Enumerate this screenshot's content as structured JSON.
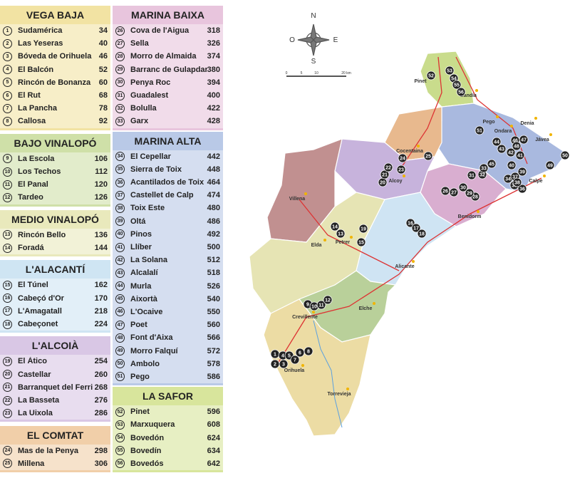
{
  "groups": [
    {
      "title": "VEGA BAJA",
      "color": "#f2e3a3",
      "items": [
        {
          "num": 1,
          "name": "Sudamérica",
          "value": 34
        },
        {
          "num": 2,
          "name": "Las Yeseras",
          "value": 40
        },
        {
          "num": 3,
          "name": "Bóveda de Orihuela",
          "value": 46
        },
        {
          "num": 4,
          "name": "El Balcón",
          "value": 52
        },
        {
          "num": 5,
          "name": "Rincón de Bonanza",
          "value": 60
        },
        {
          "num": 6,
          "name": "El Rut",
          "value": 68
        },
        {
          "num": 7,
          "name": "La Pancha",
          "value": 78
        },
        {
          "num": 8,
          "name": "Callosa",
          "value": 92
        }
      ]
    },
    {
      "title": "BAJO VINALOPÓ",
      "color": "#cfe0a8",
      "items": [
        {
          "num": 9,
          "name": "La Escola",
          "value": 106
        },
        {
          "num": 10,
          "name": "Los Techos",
          "value": 112
        },
        {
          "num": 11,
          "name": "El Panal",
          "value": 120
        },
        {
          "num": 12,
          "name": "Tardeo",
          "value": 126
        }
      ]
    },
    {
      "title": "MEDIO VINALOPÓ",
      "color": "#e9e9bc",
      "items": [
        {
          "num": 13,
          "name": "Rincón Bello",
          "value": 136
        },
        {
          "num": 14,
          "name": "Foradá",
          "value": 144
        }
      ]
    },
    {
      "title": "L'ALACANTÍ",
      "color": "#cfe5f3",
      "items": [
        {
          "num": 15,
          "name": "El Túnel",
          "value": 162
        },
        {
          "num": 16,
          "name": "Cabeçó d'Or",
          "value": 170
        },
        {
          "num": 17,
          "name": "L'Amagatall",
          "value": 218
        },
        {
          "num": 18,
          "name": "Cabeçonet",
          "value": 224
        }
      ]
    },
    {
      "title": "L'ALCOIÀ",
      "color": "#d9c7e5",
      "items": [
        {
          "num": 19,
          "name": "El Àtico",
          "value": 254
        },
        {
          "num": 20,
          "name": "Castellar",
          "value": 260
        },
        {
          "num": 21,
          "name": "Barranquet del Ferri",
          "value": 268
        },
        {
          "num": 22,
          "name": "La Basseta",
          "value": 276
        },
        {
          "num": 23,
          "name": "La Uixola",
          "value": 286
        }
      ]
    },
    {
      "title": "EL COMTAT",
      "color": "#f1cfa9",
      "items": [
        {
          "num": 24,
          "name": "Mas de la Penya",
          "value": 298
        },
        {
          "num": 25,
          "name": "Millena",
          "value": 306
        }
      ]
    },
    {
      "title": "MARINA BAIXA",
      "color": "#e8c5dd",
      "items": [
        {
          "num": 26,
          "name": "Cova de l'Aigua",
          "value": 318
        },
        {
          "num": 27,
          "name": "Sella",
          "value": 326
        },
        {
          "num": 28,
          "name": "Morro de Almaida",
          "value": 374
        },
        {
          "num": 29,
          "name": "Barranc de Gulapdar",
          "value": 380
        },
        {
          "num": 30,
          "name": "Penya Roc",
          "value": 394
        },
        {
          "num": 31,
          "name": "Guadalest",
          "value": 400
        },
        {
          "num": 32,
          "name": "Bolulla",
          "value": 422
        },
        {
          "num": 33,
          "name": "Garx",
          "value": 428
        }
      ]
    },
    {
      "title": "MARINA ALTA",
      "color": "#b9c9e7",
      "items": [
        {
          "num": 34,
          "name": "El Cepellar",
          "value": 442
        },
        {
          "num": 35,
          "name": "Sierra de Toix",
          "value": 448
        },
        {
          "num": 36,
          "name": "Acantilados de Toix",
          "value": 464
        },
        {
          "num": 37,
          "name": "Castellet de Calp",
          "value": 474
        },
        {
          "num": 38,
          "name": "Toix Este",
          "value": 480
        },
        {
          "num": 39,
          "name": "Oltá",
          "value": 486
        },
        {
          "num": 40,
          "name": "Pinos",
          "value": 492
        },
        {
          "num": 41,
          "name": "Llíber",
          "value": 500
        },
        {
          "num": 42,
          "name": "La Solana",
          "value": 512
        },
        {
          "num": 43,
          "name": "Alcalalí",
          "value": 518
        },
        {
          "num": 44,
          "name": "Murla",
          "value": 526
        },
        {
          "num": 45,
          "name": "Aixortà",
          "value": 540
        },
        {
          "num": 46,
          "name": "L'Ocaive",
          "value": 550
        },
        {
          "num": 47,
          "name": "Poet",
          "value": 560
        },
        {
          "num": 48,
          "name": "Font d'Aixa",
          "value": 566
        },
        {
          "num": 49,
          "name": "Morro Falquí",
          "value": 572
        },
        {
          "num": 50,
          "name": "Ambolo",
          "value": 578
        },
        {
          "num": 51,
          "name": "Pego",
          "value": 586
        }
      ]
    },
    {
      "title": "LA SAFOR",
      "color": "#d8e59c",
      "items": [
        {
          "num": 52,
          "name": "Pinet",
          "value": 596
        },
        {
          "num": 53,
          "name": "Marxuquera",
          "value": 608
        },
        {
          "num": 54,
          "name": "Bovedón",
          "value": 624
        },
        {
          "num": 55,
          "name": "Bovedín",
          "value": 634
        },
        {
          "num": 56,
          "name": "Bovedós",
          "value": 642
        }
      ]
    }
  ],
  "map": {
    "compass": {
      "n": "N",
      "w": "O",
      "e": "E",
      "s": "S"
    },
    "scale": [
      "0",
      "5",
      "10",
      "20 km"
    ],
    "towns": [
      "Pinet",
      "Gandía",
      "Pego",
      "Ondara",
      "Denia",
      "Jávea",
      "Calpe",
      "Benidorm",
      "Cocentaina",
      "Alcoy",
      "Villena",
      "Elda",
      "Petrer",
      "Alicante",
      "Elche",
      "Crevillente",
      "Orihuela",
      "Torrevieja"
    ]
  }
}
